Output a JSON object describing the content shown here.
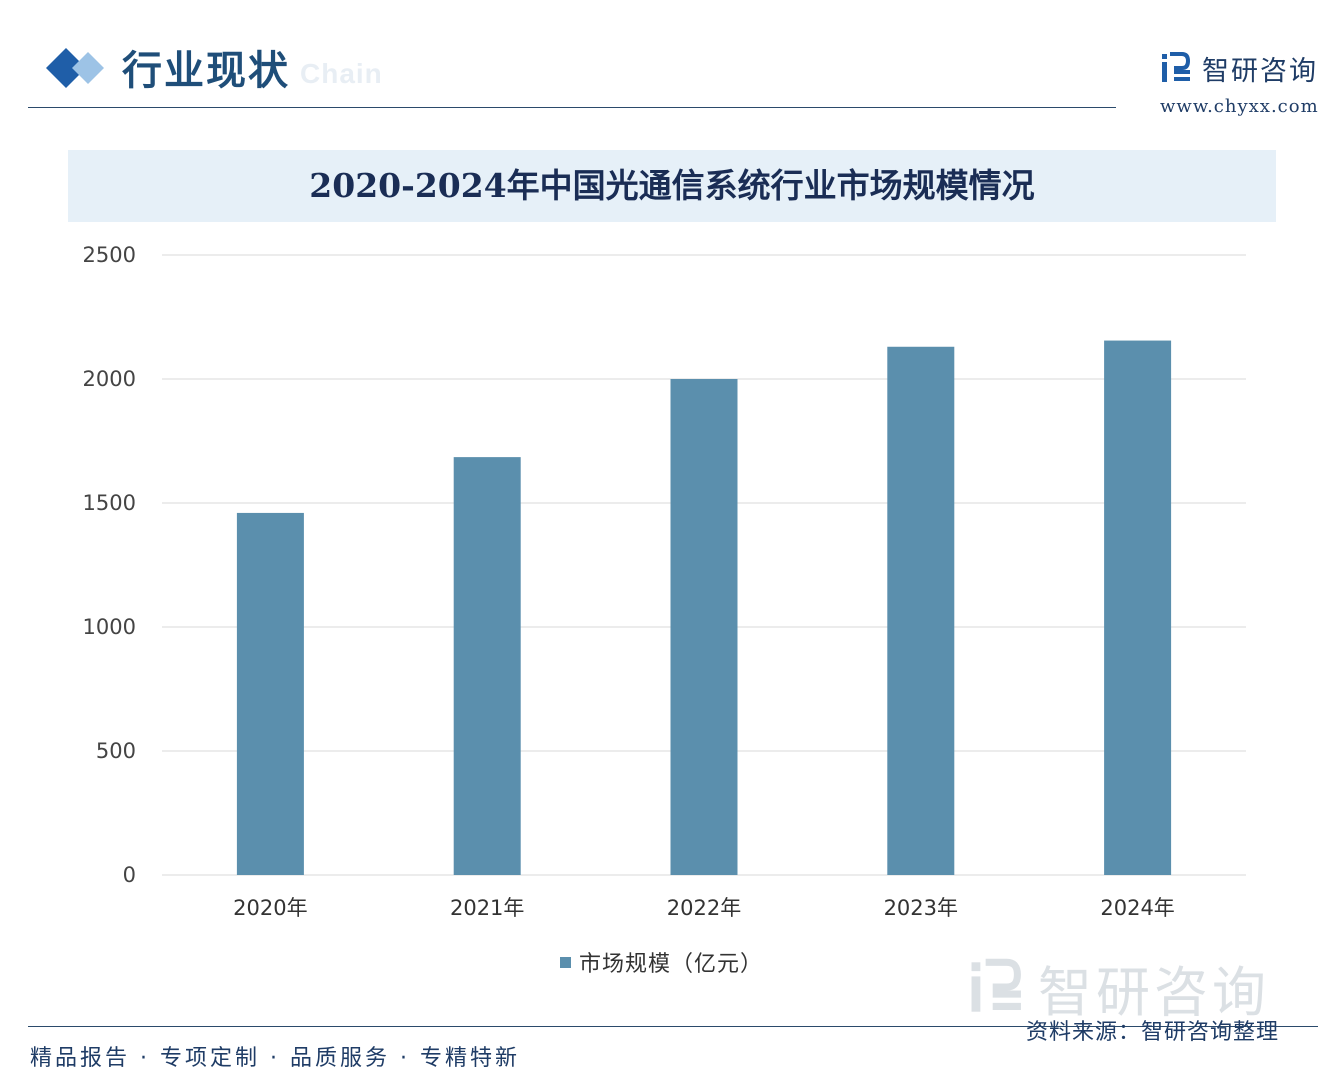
{
  "header": {
    "section_title": "行业现状",
    "ghost_text": "Chain",
    "logo_text": "智研咨询",
    "site_url": "www.chyxx.com"
  },
  "chart_data": {
    "type": "bar",
    "title": "2020-2024年中国光通信系统行业市场规模情况",
    "categories": [
      "2020年",
      "2021年",
      "2022年",
      "2023年",
      "2024年"
    ],
    "series": [
      {
        "name": "市场规模（亿元）",
        "values": [
          1460,
          1685,
          2000,
          2130,
          2155
        ]
      }
    ],
    "yticks": [
      "0",
      "500",
      "1000",
      "1500",
      "2000",
      "2500"
    ],
    "ylim": [
      0,
      2500
    ],
    "grid": true,
    "legend_position": "bottom",
    "bar_color": "#5b8fad",
    "grid_color": "#d9d9d9"
  },
  "footer": {
    "slogan": "精品报告 · 专项定制 · 品质服务 · 专精特新",
    "source": "资料来源：智研咨询整理",
    "watermark_text": "智研咨询"
  },
  "colors": {
    "accent": "#1f4e79",
    "title_band": "#e6f0f8"
  }
}
